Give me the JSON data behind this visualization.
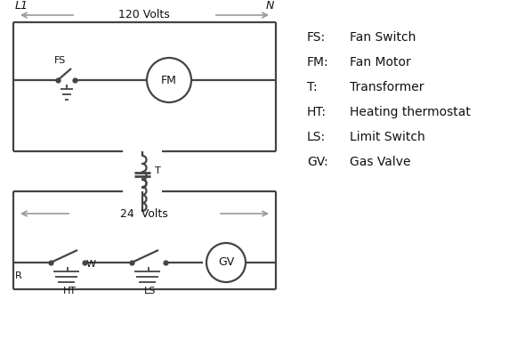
{
  "background_color": "#ffffff",
  "line_color": "#444444",
  "arrow_color": "#999999",
  "text_color": "#111111",
  "legend": [
    [
      "FS:",
      "Fan Switch"
    ],
    [
      "FM:",
      "Fan Motor"
    ],
    [
      "T:",
      "Transformer"
    ],
    [
      "HT:",
      "Heating thermostat"
    ],
    [
      "LS:",
      "Limit Switch"
    ],
    [
      "GV:",
      "Gas Valve"
    ]
  ],
  "L1_label": "L1",
  "N_label": "N",
  "volts_120": "120 Volts",
  "volts_24": "24  Volts",
  "T_label": "T",
  "R_label": "R",
  "W_label": "W",
  "FS_label": "FS",
  "FM_label": "FM",
  "HT_label": "HT",
  "LS_label": "LS",
  "GV_label": "GV"
}
